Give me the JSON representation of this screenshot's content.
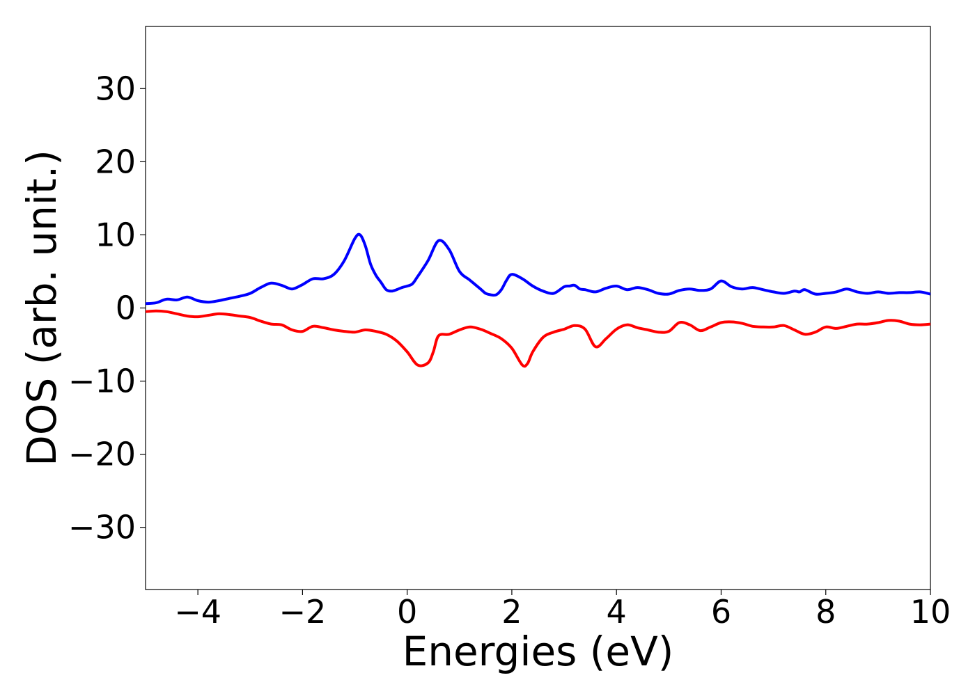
{
  "chart_data": {
    "type": "line",
    "title": "",
    "xlabel": "Energies (eV)",
    "ylabel": "DOS (arb. unit.)",
    "xlim": [
      -5,
      10
    ],
    "ylim": [
      -38.5,
      38.5
    ],
    "xticks": [
      -4,
      -2,
      0,
      2,
      4,
      6,
      8,
      10
    ],
    "yticks": [
      30,
      20,
      10,
      0,
      -10,
      -20,
      -30
    ],
    "xtick_labels": [
      "−4",
      "−2",
      "0",
      "2",
      "4",
      "6",
      "8",
      "10"
    ],
    "ytick_labels": [
      "30",
      "20",
      "10",
      "0",
      "−10",
      "−20",
      "−30"
    ],
    "grid": false,
    "legend": "none",
    "series": [
      {
        "color": "#0000ff",
        "x": [
          -5.0,
          -4.8,
          -4.6,
          -4.4,
          -4.2,
          -4.0,
          -3.8,
          -3.6,
          -3.4,
          -3.2,
          -3.0,
          -2.8,
          -2.6,
          -2.4,
          -2.2,
          -2.0,
          -1.8,
          -1.6,
          -1.4,
          -1.2,
          -1.0,
          -0.9,
          -0.8,
          -0.7,
          -0.6,
          -0.5,
          -0.4,
          -0.3,
          -0.2,
          -0.1,
          0.0,
          0.1,
          0.2,
          0.4,
          0.6,
          0.8,
          1.0,
          1.2,
          1.4,
          1.5,
          1.6,
          1.7,
          1.8,
          1.9,
          2.0,
          2.2,
          2.4,
          2.6,
          2.8,
          3.0,
          3.1,
          3.2,
          3.3,
          3.4,
          3.6,
          3.8,
          4.0,
          4.2,
          4.4,
          4.6,
          4.8,
          5.0,
          5.2,
          5.4,
          5.6,
          5.8,
          6.0,
          6.2,
          6.4,
          6.6,
          6.8,
          7.0,
          7.2,
          7.4,
          7.5,
          7.6,
          7.8,
          8.0,
          8.2,
          8.4,
          8.6,
          8.8,
          9.0,
          9.2,
          9.4,
          9.6,
          9.8,
          10.0
        ],
        "y": [
          0.6,
          0.7,
          1.2,
          1.1,
          1.5,
          1.0,
          0.8,
          1.0,
          1.3,
          1.6,
          2.0,
          2.8,
          3.4,
          3.1,
          2.6,
          3.2,
          4.0,
          4.0,
          4.6,
          6.5,
          9.5,
          10.0,
          8.5,
          6.0,
          4.5,
          3.5,
          2.5,
          2.3,
          2.5,
          2.8,
          3.0,
          3.3,
          4.3,
          6.5,
          9.2,
          8.0,
          5.0,
          3.8,
          2.6,
          2.0,
          1.8,
          1.8,
          2.5,
          3.8,
          4.6,
          4.0,
          3.0,
          2.3,
          2.0,
          2.9,
          3.0,
          3.1,
          2.6,
          2.5,
          2.2,
          2.7,
          3.0,
          2.5,
          2.8,
          2.5,
          2.0,
          1.9,
          2.4,
          2.6,
          2.4,
          2.6,
          3.7,
          2.9,
          2.6,
          2.8,
          2.5,
          2.2,
          2.0,
          2.3,
          2.2,
          2.5,
          1.9,
          2.0,
          2.2,
          2.6,
          2.2,
          2.0,
          2.2,
          2.0,
          2.1,
          2.1,
          2.2,
          1.9
        ]
      },
      {
        "color": "#ff0000",
        "x": [
          -5.0,
          -4.8,
          -4.6,
          -4.4,
          -4.2,
          -4.0,
          -3.8,
          -3.6,
          -3.4,
          -3.2,
          -3.0,
          -2.8,
          -2.6,
          -2.4,
          -2.2,
          -2.0,
          -1.8,
          -1.6,
          -1.4,
          -1.2,
          -1.0,
          -0.8,
          -0.6,
          -0.4,
          -0.2,
          0.0,
          0.2,
          0.4,
          0.5,
          0.6,
          0.8,
          1.0,
          1.2,
          1.4,
          1.6,
          1.8,
          2.0,
          2.2,
          2.3,
          2.4,
          2.6,
          2.8,
          3.0,
          3.2,
          3.4,
          3.6,
          3.8,
          4.0,
          4.2,
          4.4,
          4.6,
          4.8,
          5.0,
          5.2,
          5.4,
          5.6,
          5.8,
          6.0,
          6.2,
          6.4,
          6.6,
          6.8,
          7.0,
          7.2,
          7.4,
          7.6,
          7.8,
          8.0,
          8.2,
          8.4,
          8.6,
          8.8,
          9.0,
          9.2,
          9.4,
          9.6,
          9.8,
          10.0
        ],
        "y": [
          -0.5,
          -0.4,
          -0.5,
          -0.8,
          -1.1,
          -1.2,
          -1.0,
          -0.8,
          -0.9,
          -1.1,
          -1.3,
          -1.8,
          -2.2,
          -2.3,
          -3.0,
          -3.2,
          -2.5,
          -2.7,
          -3.0,
          -3.2,
          -3.3,
          -3.0,
          -3.2,
          -3.6,
          -4.5,
          -6.0,
          -7.8,
          -7.5,
          -6.0,
          -3.8,
          -3.6,
          -3.0,
          -2.6,
          -2.9,
          -3.5,
          -4.2,
          -5.5,
          -7.8,
          -7.6,
          -6.0,
          -4.0,
          -3.3,
          -2.9,
          -2.4,
          -2.9,
          -5.3,
          -4.2,
          -2.9,
          -2.3,
          -2.7,
          -3.0,
          -3.3,
          -3.2,
          -2.0,
          -2.3,
          -3.1,
          -2.6,
          -2.0,
          -1.9,
          -2.1,
          -2.5,
          -2.6,
          -2.6,
          -2.4,
          -3.0,
          -3.6,
          -3.3,
          -2.6,
          -2.8,
          -2.5,
          -2.2,
          -2.2,
          -2.0,
          -1.7,
          -1.8,
          -2.2,
          -2.3,
          -2.2
        ]
      }
    ]
  }
}
